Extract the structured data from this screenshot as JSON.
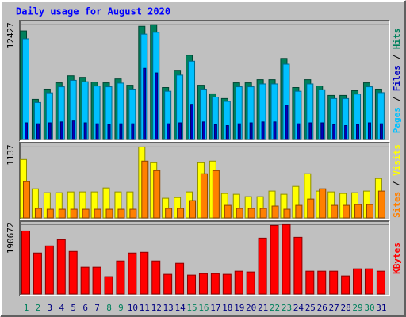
{
  "title": "Daily usage for August 2020",
  "legend_separator": " / ",
  "chart_data": [
    {
      "type": "bar",
      "series": [
        {
          "name": "Pages",
          "color": "#00c0ff",
          "values": [
            10900,
            4000,
            5050,
            5700,
            6400,
            6250,
            5780,
            5700,
            6100,
            5450,
            11400,
            11600,
            5220,
            6960,
            8470,
            5450,
            4590,
            4120,
            5700,
            5700,
            6010,
            6010,
            8150,
            5220,
            6010,
            5380,
            4430,
            4430,
            4910,
            5700,
            5070
          ]
        },
        {
          "name": "Files",
          "color": "#0000c0",
          "values": [
            1800,
            1700,
            1800,
            1900,
            2000,
            1800,
            1700,
            1600,
            1700,
            1700,
            7700,
            7200,
            1700,
            1800,
            3800,
            1900,
            1600,
            1500,
            1700,
            1800,
            1900,
            1900,
            3700,
            1700,
            1800,
            1800,
            1600,
            1500,
            1600,
            1800,
            1700
          ]
        },
        {
          "name": "Hits",
          "color": "#00805c",
          "values": [
            11750,
            4340,
            5450,
            6130,
            6890,
            6720,
            6210,
            6130,
            6550,
            5870,
            12250,
            12427,
            5620,
            7490,
            9110,
            5870,
            4940,
            4430,
            6130,
            6130,
            6470,
            6470,
            8770,
            5620,
            6470,
            5790,
            4770,
            4770,
            5280,
            6130,
            5450
          ]
        }
      ],
      "ylim": [
        0,
        12700
      ],
      "yticks": [
        12427
      ]
    },
    {
      "type": "bar",
      "series": [
        {
          "name": "Sites",
          "color": "#ff8000",
          "values": [
            581,
            152,
            139,
            139,
            139,
            139,
            139,
            139,
            139,
            139,
            910,
            758,
            152,
            152,
            278,
            707,
            758,
            202,
            152,
            152,
            152,
            190,
            139,
            202,
            303,
            467,
            202,
            202,
            215,
            215,
            430
          ]
        },
        {
          "name": "Visits",
          "color": "#ffff00",
          "values": [
            935,
            467,
            404,
            404,
            417,
            417,
            417,
            480,
            417,
            417,
            1137,
            884,
            316,
            328,
            417,
            884,
            910,
            392,
            379,
            341,
            341,
            430,
            379,
            505,
            707,
            430,
            417,
            392,
            404,
            430,
            632
          ]
        }
      ],
      "ylim": [
        0,
        1180
      ],
      "yticks": [
        1137
      ]
    },
    {
      "type": "bar",
      "categories": [
        "1",
        "2",
        "3",
        "4",
        "5",
        "6",
        "7",
        "8",
        "9",
        "10",
        "11",
        "12",
        "13",
        "14",
        "15",
        "16",
        "17",
        "18",
        "19",
        "20",
        "21",
        "22",
        "23",
        "24",
        "25",
        "26",
        "27",
        "28",
        "29",
        "30",
        "31"
      ],
      "category_colors": [
        "#00805c",
        "#00805c",
        "#000080",
        "#000080",
        "#000080",
        "#000080",
        "#000080",
        "#00805c",
        "#00805c",
        "#000080",
        "#000080",
        "#000080",
        "#000080",
        "#000080",
        "#00805c",
        "#00805c",
        "#000080",
        "#000080",
        "#000080",
        "#000080",
        "#000080",
        "#00805c",
        "#00805c",
        "#000080",
        "#000080",
        "#000080",
        "#000080",
        "#000080",
        "#00805c",
        "#00805c",
        "#000080"
      ],
      "series": [
        {
          "name": "KBytes",
          "color": "#ff0000",
          "values": [
            173300,
            112700,
            132200,
            149500,
            117000,
            73700,
            73700,
            47700,
            91000,
            112700,
            114800,
            91000,
            54200,
            84500,
            52000,
            56300,
            56300,
            54200,
            62800,
            60700,
            153800,
            188500,
            190672,
            156000,
            62800,
            62800,
            62800,
            49800,
            69300,
            69300,
            62800
          ]
        }
      ],
      "ylim": [
        0,
        196000
      ],
      "yticks": [
        190672
      ]
    }
  ]
}
